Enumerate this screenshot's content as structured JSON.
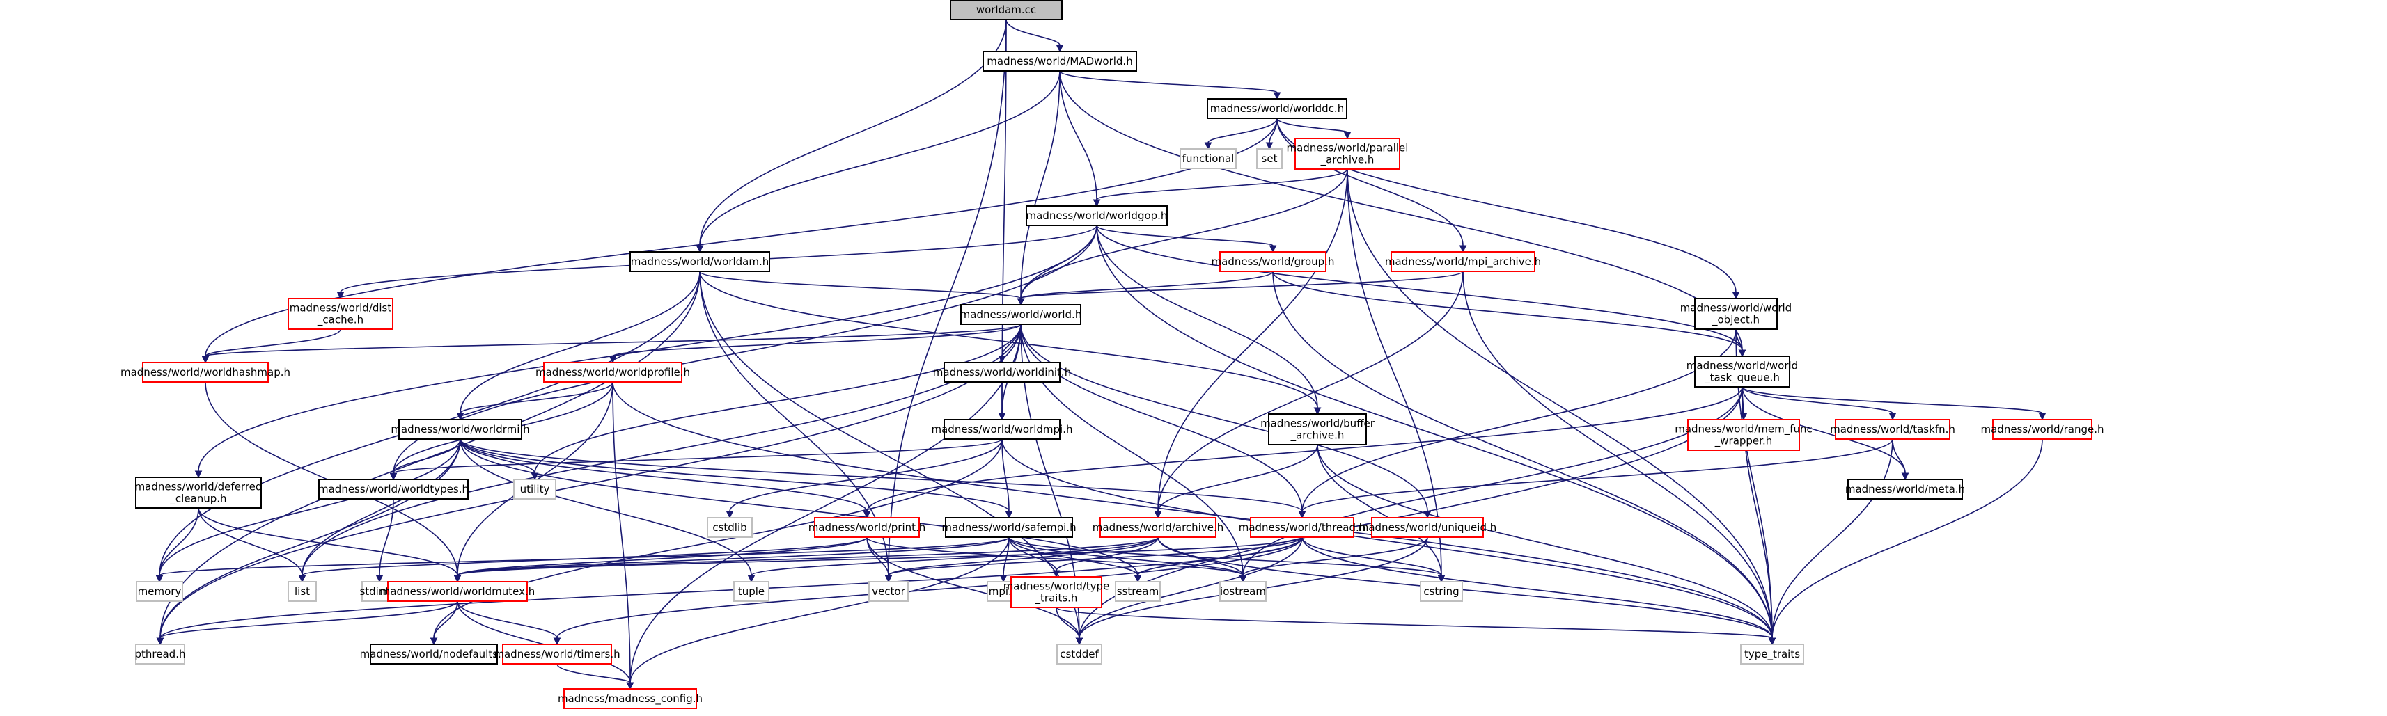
{
  "diagram": {
    "title": "worldam.cc",
    "colors": {
      "edge": "#191970",
      "root_fill": "#bfbfbf",
      "node_black": "#000000",
      "node_red": "#ff0000",
      "node_gray": "#bfbfbf",
      "fill": "#ffffff"
    },
    "nodes": [
      {
        "id": "worldam_cc",
        "lines": [
          "worldam.cc"
        ],
        "kind": "root"
      },
      {
        "id": "madworld",
        "lines": [
          "madness/world/MADworld.h"
        ],
        "kind": "black"
      },
      {
        "id": "worlddc",
        "lines": [
          "madness/world/worlddc.h"
        ],
        "kind": "black"
      },
      {
        "id": "functional",
        "lines": [
          "functional"
        ],
        "kind": "gray"
      },
      {
        "id": "set",
        "lines": [
          "set"
        ],
        "kind": "gray"
      },
      {
        "id": "parallel_archive",
        "lines": [
          "madness/world/parallel",
          "_archive.h"
        ],
        "kind": "red"
      },
      {
        "id": "worldgop",
        "lines": [
          "madness/world/worldgop.h"
        ],
        "kind": "black"
      },
      {
        "id": "worldam",
        "lines": [
          "madness/world/worldam.h"
        ],
        "kind": "black"
      },
      {
        "id": "group",
        "lines": [
          "madness/world/group.h"
        ],
        "kind": "red"
      },
      {
        "id": "mpi_archive",
        "lines": [
          "madness/world/mpi_archive.h"
        ],
        "kind": "red"
      },
      {
        "id": "dist_cache",
        "lines": [
          "madness/world/dist",
          "_cache.h"
        ],
        "kind": "red"
      },
      {
        "id": "world_h",
        "lines": [
          "madness/world/world.h"
        ],
        "kind": "black"
      },
      {
        "id": "world_object",
        "lines": [
          "madness/world/world",
          "_object.h"
        ],
        "kind": "black"
      },
      {
        "id": "worldhashmap",
        "lines": [
          "madness/world/worldhashmap.h"
        ],
        "kind": "red"
      },
      {
        "id": "worldprofile",
        "lines": [
          "madness/world/worldprofile.h"
        ],
        "kind": "red"
      },
      {
        "id": "worldinit",
        "lines": [
          "madness/world/worldinit.h"
        ],
        "kind": "black"
      },
      {
        "id": "world_task_queue",
        "lines": [
          "madness/world/world",
          "_task_queue.h"
        ],
        "kind": "black"
      },
      {
        "id": "worldrmi",
        "lines": [
          "madness/world/worldrmi.h"
        ],
        "kind": "black"
      },
      {
        "id": "worldmpi",
        "lines": [
          "madness/world/worldmpi.h"
        ],
        "kind": "black"
      },
      {
        "id": "buffer_archive",
        "lines": [
          "madness/world/buffer",
          "_archive.h"
        ],
        "kind": "black"
      },
      {
        "id": "mem_func_wrapper",
        "lines": [
          "madness/world/mem_func",
          "_wrapper.h"
        ],
        "kind": "red"
      },
      {
        "id": "taskfn",
        "lines": [
          "madness/world/taskfn.h"
        ],
        "kind": "red"
      },
      {
        "id": "range",
        "lines": [
          "madness/world/range.h"
        ],
        "kind": "red"
      },
      {
        "id": "worldtypes",
        "lines": [
          "madness/world/worldtypes.h"
        ],
        "kind": "black"
      },
      {
        "id": "utility",
        "lines": [
          "utility"
        ],
        "kind": "gray"
      },
      {
        "id": "cstdlib",
        "lines": [
          "cstdlib"
        ],
        "kind": "gray"
      },
      {
        "id": "deferred_cleanup",
        "lines": [
          "madness/world/deferred",
          "_cleanup.h"
        ],
        "kind": "black"
      },
      {
        "id": "print",
        "lines": [
          "madness/world/print.h"
        ],
        "kind": "red"
      },
      {
        "id": "safempi",
        "lines": [
          "madness/world/safempi.h"
        ],
        "kind": "black"
      },
      {
        "id": "archive",
        "lines": [
          "madness/world/archive.h"
        ],
        "kind": "red"
      },
      {
        "id": "thread",
        "lines": [
          "madness/world/thread.h"
        ],
        "kind": "red"
      },
      {
        "id": "uniqueid",
        "lines": [
          "madness/world/uniqueid.h"
        ],
        "kind": "red"
      },
      {
        "id": "meta",
        "lines": [
          "madness/world/meta.h"
        ],
        "kind": "black"
      },
      {
        "id": "memory",
        "lines": [
          "memory"
        ],
        "kind": "gray"
      },
      {
        "id": "list",
        "lines": [
          "list"
        ],
        "kind": "gray"
      },
      {
        "id": "stdint",
        "lines": [
          "stdint.h"
        ],
        "kind": "gray"
      },
      {
        "id": "worldmutex",
        "lines": [
          "madness/world/worldmutex.h"
        ],
        "kind": "red"
      },
      {
        "id": "tuple",
        "lines": [
          "tuple"
        ],
        "kind": "gray"
      },
      {
        "id": "vector",
        "lines": [
          "vector"
        ],
        "kind": "gray"
      },
      {
        "id": "mpi_h",
        "lines": [
          "mpi.h"
        ],
        "kind": "gray"
      },
      {
        "id": "type_traits_h",
        "lines": [
          "madness/world/type",
          "_traits.h"
        ],
        "kind": "red"
      },
      {
        "id": "sstream",
        "lines": [
          "sstream"
        ],
        "kind": "gray"
      },
      {
        "id": "iostream",
        "lines": [
          "iostream"
        ],
        "kind": "gray"
      },
      {
        "id": "cstring",
        "lines": [
          "cstring"
        ],
        "kind": "gray"
      },
      {
        "id": "pthread",
        "lines": [
          "pthread.h"
        ],
        "kind": "gray"
      },
      {
        "id": "nodefaults",
        "lines": [
          "madness/world/nodefaults.h"
        ],
        "kind": "black"
      },
      {
        "id": "timers",
        "lines": [
          "madness/world/timers.h"
        ],
        "kind": "red"
      },
      {
        "id": "cstddef",
        "lines": [
          "cstddef"
        ],
        "kind": "gray"
      },
      {
        "id": "type_traits",
        "lines": [
          "type_traits"
        ],
        "kind": "gray"
      },
      {
        "id": "madness_config",
        "lines": [
          "madness/madness_config.h"
        ],
        "kind": "red"
      }
    ],
    "edges": [
      [
        "worldam_cc",
        "madworld"
      ],
      [
        "worldam_cc",
        "worldam"
      ],
      [
        "worldam_cc",
        "worldmpi"
      ],
      [
        "worldam_cc",
        "vector"
      ],
      [
        "madworld",
        "worlddc"
      ],
      [
        "madworld",
        "world_h"
      ],
      [
        "madworld",
        "worldgop"
      ],
      [
        "madworld",
        "worldam"
      ],
      [
        "madworld",
        "world_task_queue"
      ],
      [
        "worlddc",
        "functional"
      ],
      [
        "worlddc",
        "set"
      ],
      [
        "worlddc",
        "parallel_archive"
      ],
      [
        "worlddc",
        "mpi_archive"
      ],
      [
        "worlddc",
        "world_object"
      ],
      [
        "worlddc",
        "worldhashmap"
      ],
      [
        "parallel_archive",
        "worldgop"
      ],
      [
        "parallel_archive",
        "world_h"
      ],
      [
        "parallel_archive",
        "archive"
      ],
      [
        "parallel_archive",
        "type_traits"
      ],
      [
        "parallel_archive",
        "cstring"
      ],
      [
        "worldgop",
        "world_h"
      ],
      [
        "worldgop",
        "group"
      ],
      [
        "worldgop",
        "dist_cache"
      ],
      [
        "worldgop",
        "buffer_archive"
      ],
      [
        "worldgop",
        "world_task_queue"
      ],
      [
        "worldgop",
        "deferred_cleanup"
      ],
      [
        "worldgop",
        "worldtypes"
      ],
      [
        "worldgop",
        "type_traits"
      ],
      [
        "worldam",
        "world_h"
      ],
      [
        "worldam",
        "worldrmi"
      ],
      [
        "worldam",
        "buffer_archive"
      ],
      [
        "worldam",
        "memory"
      ],
      [
        "worldam",
        "vector"
      ],
      [
        "worldam",
        "cstddef"
      ],
      [
        "worldam",
        "pthread"
      ],
      [
        "group",
        "world_h"
      ],
      [
        "group",
        "world_task_queue"
      ],
      [
        "group",
        "type_traits"
      ],
      [
        "mpi_archive",
        "world_h"
      ],
      [
        "mpi_archive",
        "archive"
      ],
      [
        "mpi_archive",
        "type_traits"
      ],
      [
        "dist_cache",
        "worldhashmap"
      ],
      [
        "world_h",
        "worldhashmap"
      ],
      [
        "world_h",
        "worldprofile"
      ],
      [
        "world_h",
        "worldinit"
      ],
      [
        "world_h",
        "worldmpi"
      ],
      [
        "world_h",
        "thread"
      ],
      [
        "world_h",
        "uniqueid"
      ],
      [
        "world_h",
        "utility"
      ],
      [
        "world_h",
        "list"
      ],
      [
        "world_h",
        "iostream"
      ],
      [
        "world_h",
        "cstddef"
      ],
      [
        "world_h",
        "madness_config"
      ],
      [
        "world_h",
        "pthread"
      ],
      [
        "world_object",
        "world_task_queue"
      ],
      [
        "world_object",
        "thread"
      ],
      [
        "world_object",
        "type_traits"
      ],
      [
        "worldhashmap",
        "worldmutex"
      ],
      [
        "worldprofile",
        "worldrmi"
      ],
      [
        "worldprofile",
        "worldtypes"
      ],
      [
        "worldprofile",
        "worldmutex"
      ],
      [
        "worldprofile",
        "madness_config"
      ],
      [
        "worldprofile",
        "type_traits"
      ],
      [
        "worldinit",
        "worldmpi"
      ],
      [
        "world_task_queue",
        "mem_func_wrapper"
      ],
      [
        "world_task_queue",
        "taskfn"
      ],
      [
        "world_task_queue",
        "range"
      ],
      [
        "world_task_queue",
        "meta"
      ],
      [
        "world_task_queue",
        "print"
      ],
      [
        "world_task_queue",
        "iostream"
      ],
      [
        "world_task_queue",
        "type_traits"
      ],
      [
        "world_task_queue",
        "cstddef"
      ],
      [
        "worldrmi",
        "worldtypes"
      ],
      [
        "worldrmi",
        "print"
      ],
      [
        "worldrmi",
        "thread"
      ],
      [
        "worldrmi",
        "safempi"
      ],
      [
        "worldrmi",
        "utility"
      ],
      [
        "worldrmi",
        "list"
      ],
      [
        "worldrmi",
        "memory"
      ],
      [
        "worldrmi",
        "tuple"
      ],
      [
        "worldrmi",
        "sstream"
      ],
      [
        "worldrmi",
        "pthread"
      ],
      [
        "worldmpi",
        "safempi"
      ],
      [
        "worldmpi",
        "worldtypes"
      ],
      [
        "worldmpi",
        "cstdlib"
      ],
      [
        "worldmpi",
        "type_traits"
      ],
      [
        "worldmpi",
        "nodefaults"
      ],
      [
        "buffer_archive",
        "archive"
      ],
      [
        "buffer_archive",
        "cstring"
      ],
      [
        "buffer_archive",
        "type_traits"
      ],
      [
        "taskfn",
        "thread"
      ],
      [
        "taskfn",
        "meta"
      ],
      [
        "taskfn",
        "type_traits"
      ],
      [
        "range",
        "type_traits"
      ],
      [
        "worldtypes",
        "stdint"
      ],
      [
        "deferred_cleanup",
        "worldmutex"
      ],
      [
        "deferred_cleanup",
        "list"
      ],
      [
        "deferred_cleanup",
        "memory"
      ],
      [
        "print",
        "worldmutex"
      ],
      [
        "print",
        "vector"
      ],
      [
        "print",
        "list"
      ],
      [
        "print",
        "iostream"
      ],
      [
        "print",
        "cstddef"
      ],
      [
        "safempi",
        "worldmutex"
      ],
      [
        "safempi",
        "type_traits_h"
      ],
      [
        "safempi",
        "mpi_h"
      ],
      [
        "safempi",
        "sstream"
      ],
      [
        "safempi",
        "iostream"
      ],
      [
        "safempi",
        "cstring"
      ],
      [
        "safempi",
        "madness_config"
      ],
      [
        "safempi",
        "memory"
      ],
      [
        "archive",
        "type_traits_h"
      ],
      [
        "archive",
        "iostream"
      ],
      [
        "archive",
        "vector"
      ],
      [
        "archive",
        "tuple"
      ],
      [
        "archive",
        "type_traits"
      ],
      [
        "archive",
        "worldmutex"
      ],
      [
        "thread",
        "worldmutex"
      ],
      [
        "thread",
        "sstream"
      ],
      [
        "thread",
        "cstring"
      ],
      [
        "thread",
        "vector"
      ],
      [
        "thread",
        "type_traits"
      ],
      [
        "thread",
        "cstddef"
      ],
      [
        "thread",
        "timers"
      ],
      [
        "thread",
        "pthread"
      ],
      [
        "uniqueid",
        "iostream"
      ],
      [
        "uniqueid",
        "cstddef"
      ],
      [
        "worldmutex",
        "nodefaults"
      ],
      [
        "worldmutex",
        "timers"
      ],
      [
        "worldmutex",
        "pthread"
      ],
      [
        "worldmutex",
        "madness_config"
      ],
      [
        "type_traits_h",
        "type_traits"
      ],
      [
        "type_traits_h",
        "cstddef"
      ],
      [
        "timers",
        "madness_config"
      ]
    ]
  }
}
